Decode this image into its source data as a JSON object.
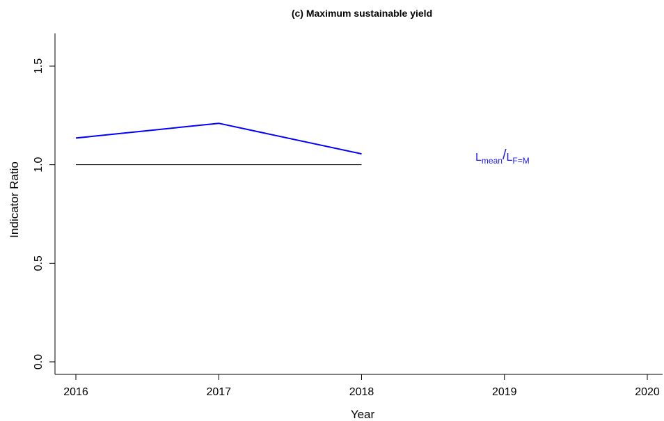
{
  "chart_data": {
    "type": "line",
    "title": "(c) Maximum sustainable yield",
    "xlabel": "Year",
    "ylabel": "Indicator Ratio",
    "xlim": [
      2016,
      2020
    ],
    "ylim": [
      0.0,
      1.5
    ],
    "x_ticks": [
      "2016",
      "2017",
      "2018",
      "2019",
      "2020"
    ],
    "y_ticks": [
      "0.0",
      "0.5",
      "1.0",
      "1.5"
    ],
    "grid": false,
    "series": [
      {
        "name": "Lmean/LF=M",
        "x": [
          2016,
          2017,
          2018
        ],
        "values": [
          1.135,
          1.21,
          1.055
        ],
        "color": "#0000ff"
      }
    ],
    "reference_line": {
      "x": [
        2016,
        2018
      ],
      "value": 1.0,
      "color": "#000000"
    },
    "annotation": {
      "main": "L",
      "sub1": "mean",
      "slash": "/",
      "main2": "L",
      "sub2": "F=M",
      "color": "#1a1aff"
    }
  }
}
